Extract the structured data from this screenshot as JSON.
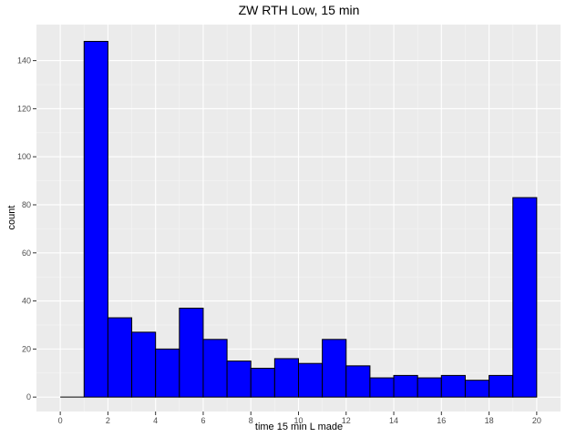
{
  "chart_data": {
    "type": "bar",
    "title": "ZW RTH Low, 15 min",
    "xlabel": "time 15 min L made",
    "ylabel": "count",
    "x_ticks": [
      0,
      2,
      4,
      6,
      8,
      10,
      12,
      14,
      16,
      18,
      20
    ],
    "y_ticks": [
      0,
      20,
      40,
      60,
      80,
      100,
      120,
      140
    ],
    "xlim": [
      -1,
      21
    ],
    "ylim": [
      -6,
      155
    ],
    "grid": true,
    "bar_color": "#0000ff",
    "bar_border_color": "#000000",
    "panel_background": "#ebebeb",
    "bins": [
      {
        "x0": 0,
        "x1": 1,
        "count": 0
      },
      {
        "x0": 1,
        "x1": 2,
        "count": 148
      },
      {
        "x0": 2,
        "x1": 3,
        "count": 33
      },
      {
        "x0": 3,
        "x1": 4,
        "count": 27
      },
      {
        "x0": 4,
        "x1": 5,
        "count": 20
      },
      {
        "x0": 5,
        "x1": 6,
        "count": 37
      },
      {
        "x0": 6,
        "x1": 7,
        "count": 24
      },
      {
        "x0": 7,
        "x1": 8,
        "count": 15
      },
      {
        "x0": 8,
        "x1": 9,
        "count": 12
      },
      {
        "x0": 9,
        "x1": 10,
        "count": 16
      },
      {
        "x0": 10,
        "x1": 11,
        "count": 14
      },
      {
        "x0": 11,
        "x1": 12,
        "count": 24
      },
      {
        "x0": 12,
        "x1": 13,
        "count": 13
      },
      {
        "x0": 13,
        "x1": 14,
        "count": 8
      },
      {
        "x0": 14,
        "x1": 15,
        "count": 9
      },
      {
        "x0": 15,
        "x1": 16,
        "count": 8
      },
      {
        "x0": 16,
        "x1": 17,
        "count": 9
      },
      {
        "x0": 17,
        "x1": 18,
        "count": 7
      },
      {
        "x0": 18,
        "x1": 19,
        "count": 9
      },
      {
        "x0": 19,
        "x1": 20,
        "count": 83
      }
    ]
  }
}
